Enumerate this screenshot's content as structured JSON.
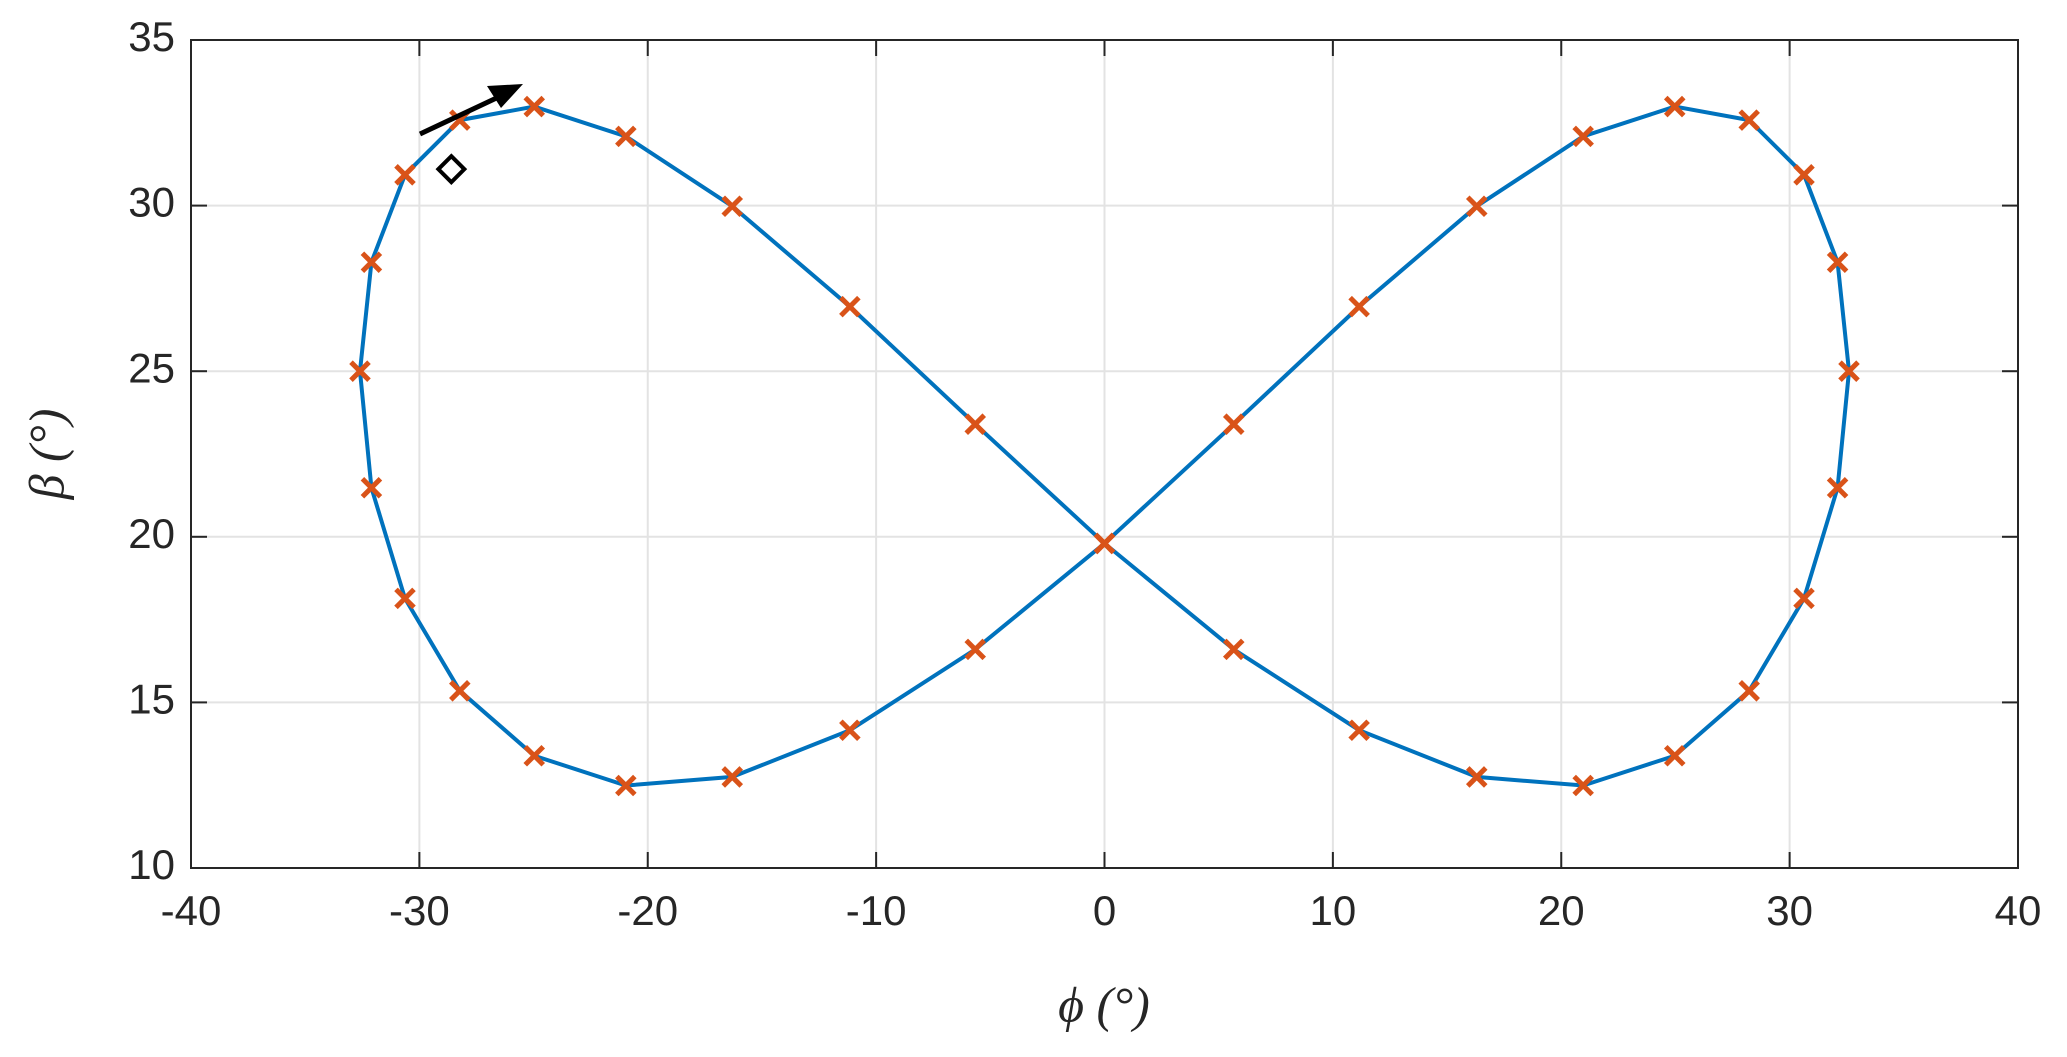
{
  "chart_data": {
    "type": "line",
    "xlabel": "ϕ (°)",
    "ylabel": "β (°)",
    "xlim": [
      -40,
      40
    ],
    "xticks": [
      -40,
      -30,
      -20,
      -10,
      0,
      10,
      20,
      30,
      40
    ],
    "ylim": [
      10,
      35
    ],
    "yticks": [
      10,
      15,
      20,
      25,
      30,
      35
    ],
    "grid": true,
    "series": [
      {
        "color": "#0072bd",
        "style": "line",
        "x": [
          -28.23,
          -24.97,
          -20.96,
          -16.3,
          -11.15,
          -5.66,
          0,
          5.66,
          11.15,
          16.3,
          20.96,
          24.97,
          28.23,
          30.63,
          32.1,
          32.6,
          32.1,
          30.63,
          28.23,
          24.97,
          20.96,
          16.3,
          11.15,
          5.66,
          0,
          -5.66,
          -11.15,
          -16.3,
          -20.96,
          -24.97,
          -28.23,
          -30.63,
          -32.1,
          -32.6,
          -32.1,
          -30.63,
          -28.23
        ],
        "values": [
          32.58,
          32.99,
          32.09,
          29.98,
          26.95,
          23.4,
          19.8,
          16.6,
          14.16,
          12.75,
          12.49,
          13.39,
          15.35,
          18.14,
          21.48,
          25.0,
          28.29,
          30.93,
          32.58,
          32.99,
          32.09,
          29.98,
          26.95,
          23.4,
          19.8,
          16.6,
          14.16,
          12.75,
          12.49,
          13.39,
          15.35,
          18.14,
          21.48,
          25.0,
          28.29,
          30.93,
          32.58
        ]
      },
      {
        "color": "#d95319",
        "style": "cross",
        "x": [
          -28.23,
          -24.97,
          -20.96,
          -16.3,
          -11.15,
          -5.66,
          0,
          5.66,
          11.15,
          16.3,
          20.96,
          24.97,
          28.23,
          30.63,
          32.1,
          32.6,
          32.1,
          30.63,
          28.23,
          24.97,
          20.96,
          16.3,
          11.15,
          5.66,
          0,
          -5.66,
          -11.15,
          -16.3,
          -20.96,
          -24.97,
          -28.23,
          -30.63,
          -32.1,
          -32.6,
          -32.1,
          -30.63
        ],
        "values": [
          32.58,
          32.99,
          32.09,
          29.98,
          26.95,
          23.4,
          19.8,
          16.6,
          14.16,
          12.75,
          12.49,
          13.39,
          15.35,
          18.14,
          21.48,
          25.0,
          28.29,
          30.93,
          32.58,
          32.99,
          32.09,
          29.98,
          26.95,
          23.4,
          19.8,
          16.6,
          14.16,
          12.75,
          12.49,
          13.39,
          15.35,
          18.14,
          21.48,
          25.0,
          28.29,
          30.93
        ]
      },
      {
        "color": "#000000",
        "style": "diamond",
        "x": [
          -28.6
        ],
        "values": [
          31.1
        ]
      }
    ]
  }
}
